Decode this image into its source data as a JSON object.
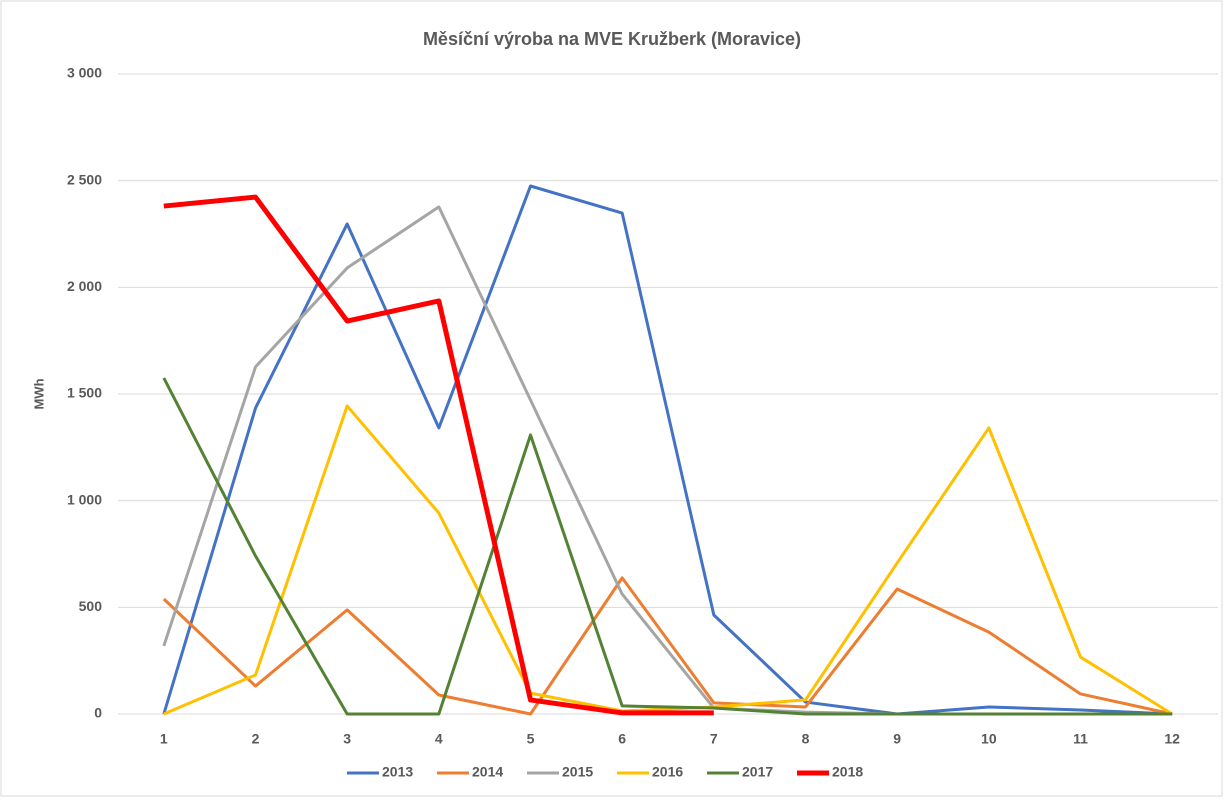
{
  "chart_data": {
    "type": "line",
    "title": "Měsíční výroba na MVE Kružberk (Moravice)",
    "y_label": "MWh",
    "categories": [
      "1",
      "2",
      "3",
      "4",
      "5",
      "6",
      "7",
      "8",
      "9",
      "10",
      "11",
      "12"
    ],
    "ylim": [
      0,
      3000
    ],
    "yticks": [
      {
        "value": 0,
        "label": "0"
      },
      {
        "value": 500,
        "label": "500"
      },
      {
        "value": 1000,
        "label": "1 000"
      },
      {
        "value": 1500,
        "label": "1 500"
      },
      {
        "value": 2000,
        "label": "2 000"
      },
      {
        "value": 2500,
        "label": "2 500"
      },
      {
        "value": 3000,
        "label": "3 000"
      }
    ],
    "grid": true,
    "legend": "bottom",
    "series": [
      {
        "name": "2013",
        "color": "#4472c4",
        "line_width": 3,
        "values": [
          0,
          1434,
          2297,
          1341,
          2475,
          2348,
          464,
          56,
          0,
          33,
          19,
          0
        ]
      },
      {
        "name": "2014",
        "color": "#ed7d31",
        "line_width": 3,
        "values": [
          539,
          131,
          488,
          89,
          0,
          638,
          52,
          33,
          586,
          384,
          94,
          0
        ]
      },
      {
        "name": "2015",
        "color": "#a5a5a5",
        "line_width": 3,
        "values": [
          319,
          1627,
          2091,
          2377,
          1472,
          562,
          28,
          9,
          0,
          0,
          0,
          0
        ]
      },
      {
        "name": "2016",
        "color": "#ffc000",
        "line_width": 3,
        "values": [
          0,
          183,
          1444,
          942,
          98,
          14,
          33,
          66,
          708,
          1341,
          267,
          0
        ]
      },
      {
        "name": "2017",
        "color": "#548235",
        "line_width": 3,
        "values": [
          1575,
          741,
          0,
          0,
          1308,
          38,
          28,
          0,
          0,
          0,
          0,
          0
        ]
      },
      {
        "name": "2018",
        "color": "#ff0000",
        "line_width": 5,
        "values": [
          2381,
          2423,
          1842,
          1936,
          66,
          5,
          5,
          null,
          null,
          null,
          null,
          null
        ]
      }
    ]
  }
}
